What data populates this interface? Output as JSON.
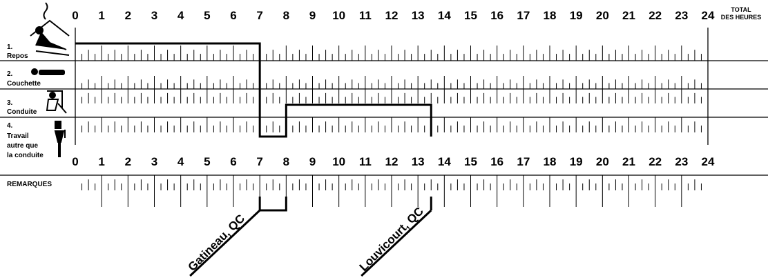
{
  "hour_labels": [
    "0",
    "1",
    "2",
    "3",
    "4",
    "5",
    "6",
    "7",
    "8",
    "9",
    "10",
    "11",
    "12",
    "13",
    "14",
    "15",
    "16",
    "17",
    "18",
    "19",
    "20",
    "21",
    "22",
    "23",
    "24"
  ],
  "total_header": {
    "line1": "TOTAL",
    "line2": "DES HEURES"
  },
  "rows": [
    {
      "number": "1.",
      "label_lines": [
        "Repos"
      ],
      "icon": "rest-icon"
    },
    {
      "number": "2.",
      "label_lines": [
        "Couchette"
      ],
      "icon": "sleeper-berth-icon"
    },
    {
      "number": "3.",
      "label_lines": [
        "Conduite"
      ],
      "icon": "driving-icon"
    },
    {
      "number": "4.",
      "label_lines": [
        "Travail",
        "autre que",
        "la conduite"
      ],
      "icon": "on-duty-icon"
    }
  ],
  "remarks_label": "REMARQUES",
  "status_segments": [
    {
      "row": 1,
      "start_hour": 0,
      "end_hour": 7
    },
    {
      "row": 4,
      "start_hour": 7,
      "end_hour": 8
    },
    {
      "row": 3,
      "start_hour": 8,
      "end_hour": 13.5
    }
  ],
  "remarks": [
    {
      "text": "Gatineau, QC",
      "start_hour": 7,
      "end_hour": 8
    },
    {
      "text": "Louvicourt, QC",
      "start_hour": 13.5,
      "end_hour": 13.5
    }
  ],
  "colors": {
    "ink": "#000000",
    "background": "#ffffff"
  }
}
